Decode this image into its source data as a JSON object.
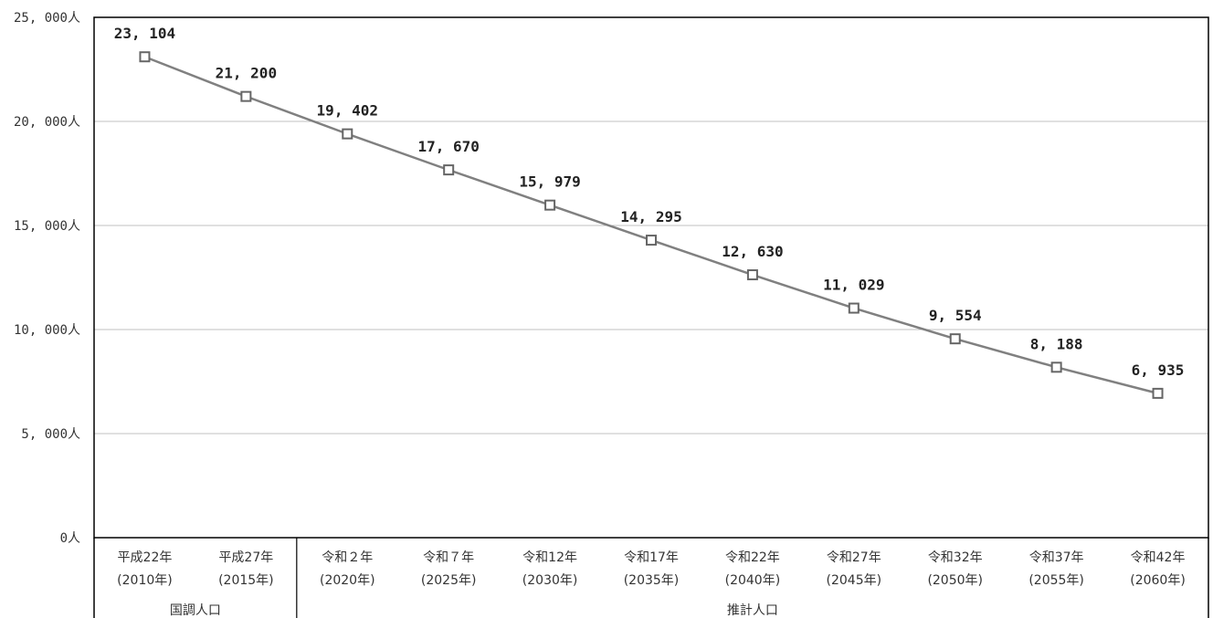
{
  "chart_data": {
    "type": "line",
    "title": "",
    "xlabel": "",
    "ylabel": "",
    "ylim": [
      0,
      25000
    ],
    "y_ticks": [
      0,
      5000,
      10000,
      15000,
      20000,
      25000
    ],
    "y_tick_labels": [
      "0人",
      "5, 000人",
      "10, 000人",
      "15, 000人",
      "20, 000人",
      "25, 000人"
    ],
    "categories": [
      [
        "平成22年",
        "(2010年)"
      ],
      [
        "平成27年",
        "(2015年)"
      ],
      [
        "令和２年",
        "(2020年)"
      ],
      [
        "令和７年",
        "(2025年)"
      ],
      [
        "令和12年",
        "(2030年)"
      ],
      [
        "令和17年",
        "(2035年)"
      ],
      [
        "令和22年",
        "(2040年)"
      ],
      [
        "令和27年",
        "(2045年)"
      ],
      [
        "令和32年",
        "(2050年)"
      ],
      [
        "令和37年",
        "(2055年)"
      ],
      [
        "令和42年",
        "(2060年)"
      ]
    ],
    "series": [
      {
        "values": [
          23104,
          21200,
          19402,
          17670,
          15979,
          14295,
          12630,
          11029,
          9554,
          8188,
          6935
        ],
        "value_labels": [
          "23, 104",
          "21, 200",
          "19, 402",
          "17, 670",
          "15, 979",
          "14, 295",
          "12, 630",
          "11, 029",
          "9, 554",
          "8, 188",
          "6, 935"
        ],
        "color": "#808080",
        "marker": "square-hollow"
      }
    ],
    "category_groups": [
      {
        "label": "国調人口",
        "start": 0,
        "count": 2
      },
      {
        "label": "推計人口",
        "start": 2,
        "count": 9
      }
    ],
    "grid": true,
    "legend": "none",
    "colors": {
      "line": "#808080",
      "grid": "#c0c0c0",
      "axis": "#000000"
    }
  }
}
